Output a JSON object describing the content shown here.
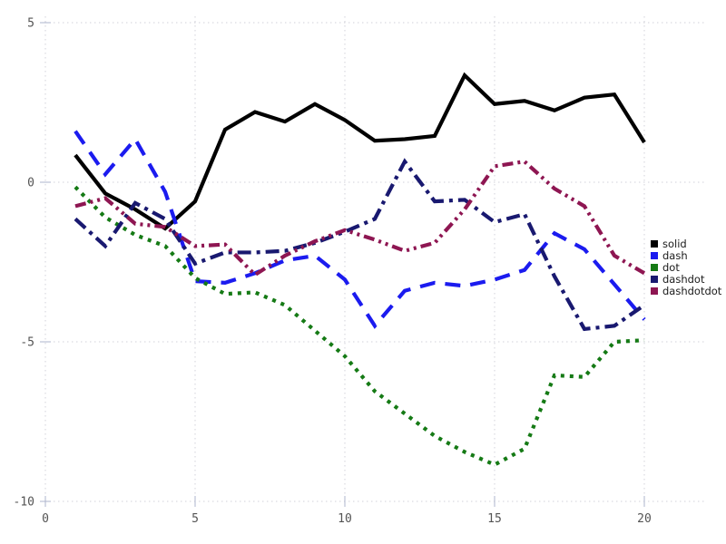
{
  "chart_data": {
    "type": "line",
    "title": "",
    "xlabel": "",
    "ylabel": "",
    "xlim": [
      0,
      20
    ],
    "ylim": [
      -10,
      5
    ],
    "grid": true,
    "legend_position": "right",
    "x_ticks": [
      0,
      5,
      10,
      15,
      20
    ],
    "x_tick_labels": [
      "0",
      "5",
      "10",
      "15",
      "20"
    ],
    "y_ticks": [
      5,
      0,
      -5,
      -10
    ],
    "y_tick_labels": [
      "5",
      "0",
      "-5",
      "-10"
    ],
    "x": [
      1,
      2,
      3,
      4,
      5,
      6,
      7,
      8,
      9,
      10,
      11,
      12,
      13,
      14,
      15,
      16,
      17,
      18,
      19,
      20
    ],
    "series": [
      {
        "name": "solid",
        "color": "#000000",
        "style": "solid",
        "values": [
          0.85,
          -0.35,
          -0.85,
          -1.45,
          -0.6,
          1.65,
          2.2,
          1.9,
          2.45,
          1.95,
          1.3,
          1.35,
          1.45,
          3.35,
          2.45,
          2.55,
          2.25,
          2.65,
          2.75,
          1.25
        ]
      },
      {
        "name": "dash",
        "color": "#1b1bef",
        "style": "dash",
        "values": [
          1.6,
          0.25,
          1.35,
          -0.3,
          -3.1,
          -3.15,
          -2.85,
          -2.45,
          -2.3,
          -3.05,
          -4.5,
          -3.4,
          -3.15,
          -3.25,
          -3.05,
          -2.75,
          -1.6,
          -2.1,
          -3.2,
          -4.3
        ]
      },
      {
        "name": "dot",
        "color": "#157a15",
        "style": "dot",
        "values": [
          -0.15,
          -1.1,
          -1.65,
          -2.0,
          -3.0,
          -3.5,
          -3.45,
          -3.85,
          -4.65,
          -5.45,
          -6.55,
          -7.25,
          -7.95,
          -8.45,
          -8.85,
          -8.35,
          -6.05,
          -6.1,
          -5.0,
          -4.95
        ]
      },
      {
        "name": "dashdot",
        "color": "#191970",
        "style": "dashdot",
        "values": [
          -1.15,
          -2.0,
          -0.65,
          -1.15,
          -2.55,
          -2.2,
          -2.2,
          -2.15,
          -1.9,
          -1.55,
          -1.15,
          0.65,
          -0.6,
          -0.55,
          -1.25,
          -1.0,
          -2.95,
          -4.6,
          -4.5,
          -3.85
        ]
      },
      {
        "name": "dashdotdot",
        "color": "#8e1652",
        "style": "dashdotdot",
        "values": [
          -0.75,
          -0.5,
          -1.3,
          -1.4,
          -2.0,
          -1.95,
          -2.9,
          -2.3,
          -1.85,
          -1.5,
          -1.8,
          -2.15,
          -1.9,
          -0.85,
          0.5,
          0.65,
          -0.2,
          -0.75,
          -2.3,
          -2.85
        ]
      }
    ],
    "colors": {
      "grid": "#d2d2da",
      "tick_mark": "#aeb4cc",
      "tick_text": "#545454",
      "legend_text": "#1a1a1a",
      "background": "#ffffff"
    }
  }
}
